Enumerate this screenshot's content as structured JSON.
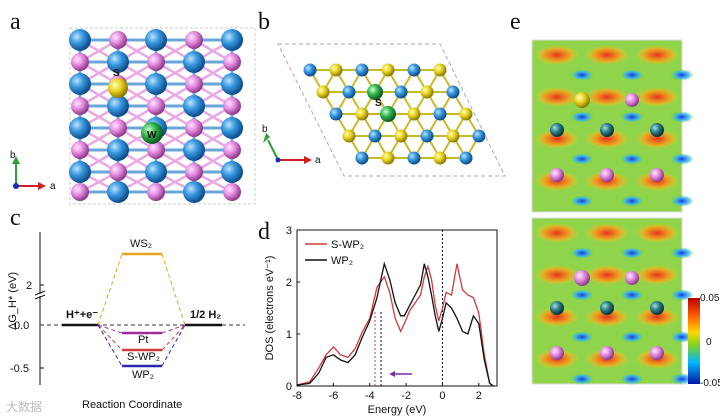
{
  "panels": {
    "a": "a",
    "b": "b",
    "c": "c",
    "d": "d",
    "e": "e"
  },
  "atoms": {
    "s_label": "S",
    "w_label": "W"
  },
  "axes_glyph": {
    "a": "a",
    "b": "b"
  },
  "panel_c": {
    "ylabel": "ΔG_H* (eV)",
    "xlabel": "Reaction Coordinate",
    "yticks": [
      "2",
      "0.0",
      "-0.5"
    ],
    "left_label": "H⁺+e⁻",
    "right_label": "1/2 H₂",
    "levels": [
      {
        "name": "WS₂",
        "color": "#e5a21b"
      },
      {
        "name": "Pt",
        "color": "#a02a9b"
      },
      {
        "name": "S-WP₂",
        "color": "#d33a3a"
      },
      {
        "name": "WP₂",
        "color": "#2a2ab0"
      }
    ]
  },
  "chart_data": {
    "type": "line",
    "title": "",
    "xlabel": "Energy (eV)",
    "ylabel": "DOS (electrons eV⁻¹)",
    "xlim": [
      -8,
      3
    ],
    "ylim": [
      0,
      3
    ],
    "xticks": [
      "-8",
      "-6",
      "-4",
      "-2",
      "0",
      "2"
    ],
    "yticks": [
      "0",
      "1",
      "2",
      "3"
    ],
    "legend_position": "top-left",
    "series": [
      {
        "name": "S-WP₂",
        "color": "#d33a3a",
        "x": [
          -8,
          -7.3,
          -6.8,
          -6.4,
          -6.0,
          -5.6,
          -5.2,
          -4.8,
          -4.4,
          -4.0,
          -3.6,
          -3.2,
          -2.9,
          -2.6,
          -2.3,
          -2.1,
          -1.8,
          -1.5,
          -1.2,
          -1.0,
          -0.8,
          -0.6,
          -0.4,
          -0.2,
          0.0,
          0.2,
          0.5,
          0.8,
          1.1,
          1.4,
          1.7,
          2.0,
          2.3,
          2.6,
          2.8
        ],
        "values": [
          0.02,
          0.08,
          0.35,
          0.6,
          0.75,
          0.6,
          0.55,
          0.72,
          1.05,
          1.3,
          1.9,
          2.1,
          1.8,
          1.3,
          1.05,
          1.2,
          1.45,
          1.6,
          1.75,
          2.1,
          2.3,
          2.05,
          1.55,
          1.25,
          1.5,
          1.8,
          1.75,
          2.35,
          1.85,
          1.75,
          1.7,
          1.4,
          0.6,
          0.05,
          0.0
        ]
      },
      {
        "name": "WP₂",
        "color": "#111111",
        "x": [
          -8,
          -7.3,
          -6.8,
          -6.4,
          -6.0,
          -5.6,
          -5.2,
          -4.8,
          -4.4,
          -4.0,
          -3.6,
          -3.2,
          -2.9,
          -2.6,
          -2.3,
          -2.1,
          -1.8,
          -1.5,
          -1.2,
          -1.0,
          -0.8,
          -0.6,
          -0.4,
          -0.2,
          0.0,
          0.2,
          0.5,
          0.8,
          1.1,
          1.4,
          1.7,
          2.0,
          2.3,
          2.6,
          2.8
        ],
        "values": [
          0.02,
          0.05,
          0.25,
          0.55,
          0.6,
          0.5,
          0.45,
          0.6,
          0.95,
          1.25,
          1.7,
          2.35,
          2.05,
          1.6,
          1.35,
          1.35,
          1.55,
          1.75,
          1.95,
          2.35,
          2.1,
          1.75,
          1.35,
          1.05,
          1.3,
          1.6,
          1.5,
          1.3,
          1.05,
          1.0,
          1.35,
          1.2,
          0.5,
          0.05,
          0.0
        ]
      }
    ]
  },
  "colorbar": {
    "max": "0.05",
    "mid": "0",
    "min": "-0.05"
  },
  "watermark": "大数据"
}
